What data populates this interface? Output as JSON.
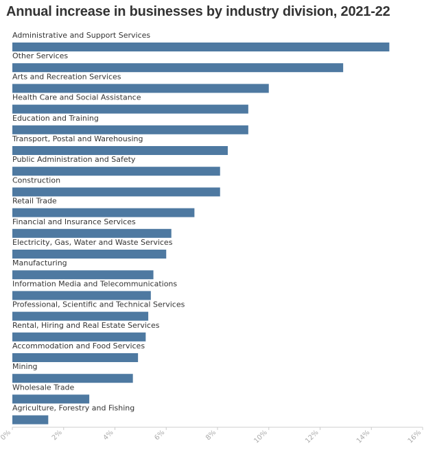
{
  "chart_data": {
    "type": "bar",
    "orientation": "horizontal",
    "title": "Annual increase in businesses by industry division, 2021-22",
    "xlabel": "",
    "ylabel": "",
    "xlim": [
      0,
      16
    ],
    "x_ticks": [
      "0%",
      "2%",
      "4%",
      "6%",
      "8%",
      "10%",
      "12%",
      "14%",
      "16%"
    ],
    "categories": [
      "Administrative and Support Services",
      "Other Services",
      "Arts and Recreation Services",
      "Health Care and Social Assistance",
      "Education and Training",
      "Transport, Postal and Warehousing",
      "Public Administration and Safety",
      "Construction",
      "Retail Trade",
      "Financial and Insurance Services",
      "Electricity, Gas, Water and Waste Services",
      "Manufacturing",
      "Information Media and Telecommunications",
      "Professional, Scientific and Technical Services",
      "Rental, Hiring and Real Estate Services",
      "Accommodation and Food Services",
      "Mining",
      "Wholesale Trade",
      "Agriculture, Forestry and Fishing"
    ],
    "values": [
      14.7,
      12.9,
      10.0,
      9.2,
      9.2,
      8.4,
      8.1,
      8.1,
      7.1,
      6.2,
      6.0,
      5.5,
      5.4,
      5.3,
      5.2,
      4.9,
      4.7,
      3.0,
      1.4
    ],
    "bar_color": "#4e79a1",
    "grid": false,
    "legend": "none"
  }
}
